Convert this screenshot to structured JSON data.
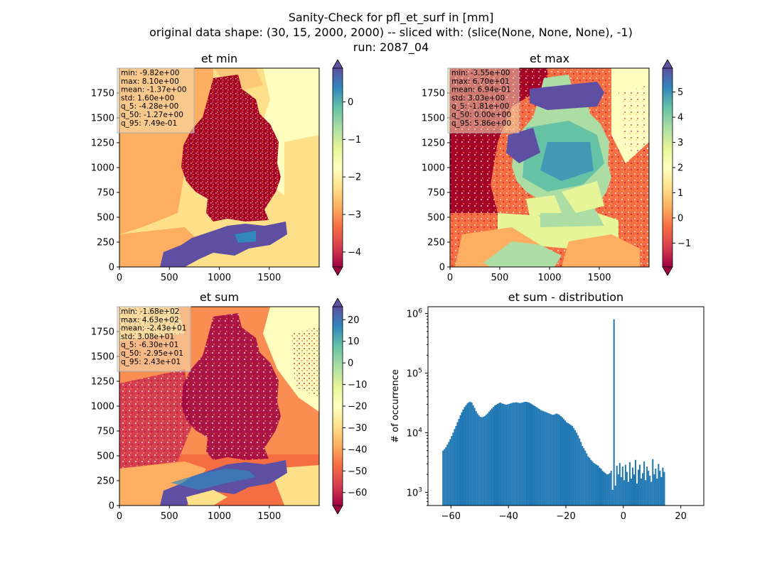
{
  "suptitle": {
    "line1": "Sanity-Check for pfl_et_surf in [mm]",
    "line2": "original data shape: (30, 15, 2000, 2000) -- sliced with: (slice(None, None, None), -1)",
    "line3": "run: 2087_04"
  },
  "colormap": "Spectral",
  "chart_data": [
    {
      "type": "heatmap",
      "title": "et min",
      "xticks": [
        0,
        500,
        1000,
        1500
      ],
      "yticks": [
        0,
        250,
        500,
        750,
        1000,
        1250,
        1500,
        1750
      ],
      "xlim": [
        0,
        2000
      ],
      "ylim": [
        0,
        2000
      ],
      "colorbar": {
        "vmin": -4.4,
        "vmax": 0.9,
        "ticks": [
          -4,
          -3,
          -2,
          -1,
          0
        ],
        "tick_labels": [
          "−4",
          "−3",
          "−2",
          "−1",
          "0"
        ],
        "extend": "both"
      },
      "stats": [
        "min: -9.82e+00",
        "max: 8.10e+00",
        "mean: -1.37e+00",
        "std: 1.60e+00",
        "q_5: -4.28e+00",
        "q_50: -1.27e+00",
        "q_95: 7.49e-01"
      ]
    },
    {
      "type": "heatmap",
      "title": "et max",
      "xticks": [
        0,
        500,
        1000,
        1500
      ],
      "yticks": [
        0,
        250,
        500,
        750,
        1000,
        1250,
        1500,
        1750
      ],
      "xlim": [
        0,
        2000
      ],
      "ylim": [
        0,
        2000
      ],
      "colorbar": {
        "vmin": -1.95,
        "vmax": 5.95,
        "ticks": [
          -1,
          0,
          1,
          2,
          3,
          4,
          5
        ],
        "tick_labels": [
          "−1",
          "0",
          "1",
          "2",
          "3",
          "4",
          "5"
        ],
        "extend": "both"
      },
      "stats": [
        "min: -3.55e+00",
        "max: 6.70e+01",
        "mean: 6.94e-01",
        "std: 3.03e+00",
        "q_5: -1.81e+00",
        "q_50: 0.00e+00",
        "q_95: 5.86e+00"
      ]
    },
    {
      "type": "heatmap",
      "title": "et sum",
      "xticks": [
        0,
        500,
        1000,
        1500
      ],
      "yticks": [
        0,
        250,
        500,
        750,
        1000,
        1250,
        1500,
        1750
      ],
      "xlim": [
        0,
        2000
      ],
      "ylim": [
        0,
        2000
      ],
      "colorbar": {
        "vmin": -66,
        "vmax": 26,
        "ticks": [
          -60,
          -50,
          -40,
          -30,
          -20,
          -10,
          0,
          10,
          20
        ],
        "tick_labels": [
          "−60",
          "−50",
          "−40",
          "−30",
          "−20",
          "−10",
          "0",
          "10",
          "20"
        ],
        "extend": "both"
      },
      "stats": [
        "min: -1.68e+02",
        "max: 4.63e+02",
        "mean: -2.43e+01",
        "std: 3.08e+01",
        "q_5: -6.30e+01",
        "q_50: -2.95e+01",
        "q_95: 2.43e+01"
      ]
    },
    {
      "type": "bar",
      "title": "et sum - distribution",
      "ylabel": "# of occurrence",
      "xlabel": "",
      "yscale": "log",
      "xlim": [
        -68,
        28
      ],
      "ylim": [
        600,
        1300000
      ],
      "xticks": [
        -60,
        -40,
        -20,
        0,
        20
      ],
      "xtick_labels": [
        "−60",
        "−40",
        "−20",
        "0",
        "20"
      ],
      "yticks": [
        1000,
        10000,
        100000,
        1000000
      ],
      "ytick_labels": [
        [
          "10",
          "3"
        ],
        [
          "10",
          "4"
        ],
        [
          "10",
          "5"
        ],
        [
          "10",
          "6"
        ]
      ],
      "color": "#1f77b4",
      "bin_start": -63,
      "bin_width": 0.5,
      "values": [
        5000,
        5300,
        5700,
        6300,
        7000,
        7800,
        8800,
        10000,
        11500,
        13000,
        15000,
        17000,
        19500,
        22000,
        24500,
        27000,
        29000,
        31000,
        32500,
        33000,
        32000,
        29000,
        26000,
        23000,
        21000,
        19500,
        18500,
        18200,
        18500,
        19000,
        20000,
        21000,
        22500,
        24000,
        25500,
        27000,
        28500,
        29500,
        30500,
        31500,
        32000,
        31000,
        30500,
        30000,
        29500,
        30000,
        30500,
        31000,
        31500,
        32000,
        32000,
        32500,
        32000,
        31500,
        31500,
        32000,
        32500,
        33000,
        33000,
        32500,
        32000,
        31000,
        30000,
        29000,
        28000,
        27000,
        26000,
        25000,
        24000,
        23500,
        23000,
        22500,
        22000,
        21500,
        21000,
        20500,
        20000,
        20000,
        20500,
        21000,
        20500,
        20000,
        19000,
        18000,
        17000,
        16000,
        15000,
        14500,
        14000,
        13500,
        13000,
        12000,
        11000,
        10000,
        9000,
        8000,
        7000,
        6000,
        5500,
        5000,
        4500,
        4000,
        3800,
        3500,
        3300,
        3100,
        3000,
        2900,
        2800,
        2600,
        2500,
        2300,
        2200,
        2100,
        2000,
        2000,
        2100,
        2300,
        1100,
        800000,
        1300,
        2800,
        2000,
        3100,
        1800,
        2700,
        1600,
        2900,
        2200,
        1500,
        3200,
        1700,
        2600,
        2000,
        3500,
        1400,
        2400,
        2900,
        1700,
        2100,
        3300,
        1600,
        2700,
        2300,
        1900,
        1500,
        3600,
        2000,
        2500,
        1700,
        3000,
        2300,
        1800,
        2600,
        2200
      ]
    }
  ]
}
